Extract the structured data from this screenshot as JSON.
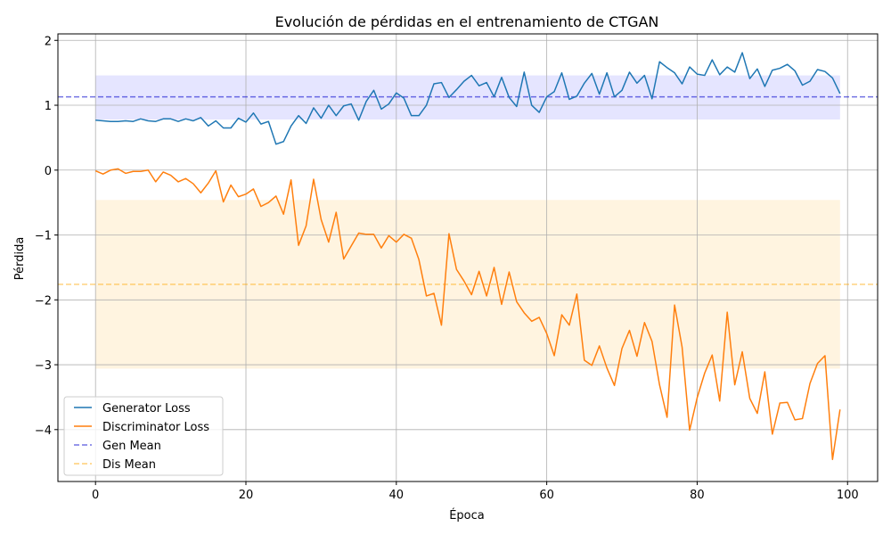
{
  "chart_data": {
    "type": "line",
    "title": "Evolución de pérdidas en el entrenamiento de CTGAN",
    "xlabel": "Época",
    "ylabel": "Pérdida",
    "xlim": [
      -5,
      104
    ],
    "ylim": [
      -4.8,
      2.1
    ],
    "xticks": [
      0,
      20,
      40,
      60,
      80,
      100
    ],
    "yticks": [
      2,
      1,
      0,
      -1,
      -2,
      -3,
      -4
    ],
    "ytick_labels": [
      "2",
      "1",
      "0",
      "−1",
      "−2",
      "−3",
      "−4"
    ],
    "grid": true,
    "legend_position": "lower-left",
    "series": [
      {
        "name": "Generator Loss",
        "color": "#1f77b4",
        "x_start": 0,
        "values": [
          0.77,
          0.76,
          0.75,
          0.75,
          0.76,
          0.75,
          0.79,
          0.76,
          0.75,
          0.79,
          0.79,
          0.75,
          0.79,
          0.76,
          0.81,
          0.68,
          0.76,
          0.65,
          0.65,
          0.8,
          0.74,
          0.88,
          0.71,
          0.75,
          0.4,
          0.44,
          0.68,
          0.84,
          0.72,
          0.96,
          0.8,
          1.0,
          0.84,
          0.99,
          1.02,
          0.77,
          1.06,
          1.23,
          0.94,
          1.02,
          1.19,
          1.11,
          0.84,
          0.84,
          1.0,
          1.33,
          1.35,
          1.12,
          1.24,
          1.37,
          1.46,
          1.3,
          1.35,
          1.13,
          1.43,
          1.12,
          0.98,
          1.51,
          1.0,
          0.89,
          1.13,
          1.21,
          1.5,
          1.09,
          1.14,
          1.34,
          1.49,
          1.17,
          1.5,
          1.13,
          1.23,
          1.51,
          1.34,
          1.46,
          1.1,
          1.67,
          1.58,
          1.5,
          1.33,
          1.59,
          1.48,
          1.46,
          1.7,
          1.47,
          1.59,
          1.51,
          1.81,
          1.41,
          1.56,
          1.29,
          1.54,
          1.57,
          1.63,
          1.53,
          1.31,
          1.37,
          1.55,
          1.52,
          1.42,
          1.18
        ]
      },
      {
        "name": "Discriminator Loss",
        "color": "#ff7f0e",
        "x_start": 0,
        "values": [
          -0.01,
          -0.06,
          0.0,
          0.02,
          -0.05,
          -0.02,
          -0.02,
          0.0,
          -0.18,
          -0.03,
          -0.08,
          -0.18,
          -0.13,
          -0.21,
          -0.35,
          -0.2,
          -0.01,
          -0.49,
          -0.23,
          -0.41,
          -0.37,
          -0.29,
          -0.56,
          -0.5,
          -0.4,
          -0.68,
          -0.15,
          -1.16,
          -0.86,
          -0.14,
          -0.76,
          -1.11,
          -0.65,
          -1.37,
          -1.17,
          -0.97,
          -0.99,
          -0.99,
          -1.2,
          -1.01,
          -1.11,
          -0.99,
          -1.05,
          -1.38,
          -1.94,
          -1.9,
          -2.39,
          -0.98,
          -1.53,
          -1.71,
          -1.92,
          -1.56,
          -1.94,
          -1.5,
          -2.07,
          -1.57,
          -2.03,
          -2.2,
          -2.33,
          -2.27,
          -2.52,
          -2.86,
          -2.23,
          -2.39,
          -1.91,
          -2.93,
          -3.01,
          -2.71,
          -3.05,
          -3.32,
          -2.75,
          -2.47,
          -2.87,
          -2.35,
          -2.64,
          -3.31,
          -3.81,
          -2.08,
          -2.73,
          -4.01,
          -3.51,
          -3.13,
          -2.85,
          -3.56,
          -2.19,
          -3.31,
          -2.8,
          -3.52,
          -3.75,
          -3.11,
          -4.07,
          -3.59,
          -3.58,
          -3.85,
          -3.83,
          -3.29,
          -2.98,
          -2.86,
          -4.46,
          -3.69
        ]
      },
      {
        "name": "Gen Mean",
        "color": "#0000cc",
        "style": "dashed",
        "value": 1.13,
        "band": [
          0.78,
          1.46
        ]
      },
      {
        "name": "Dis Mean",
        "color": "#ffa500",
        "style": "dashed",
        "value": -1.76,
        "band": [
          -3.06,
          -0.46
        ]
      }
    ]
  }
}
